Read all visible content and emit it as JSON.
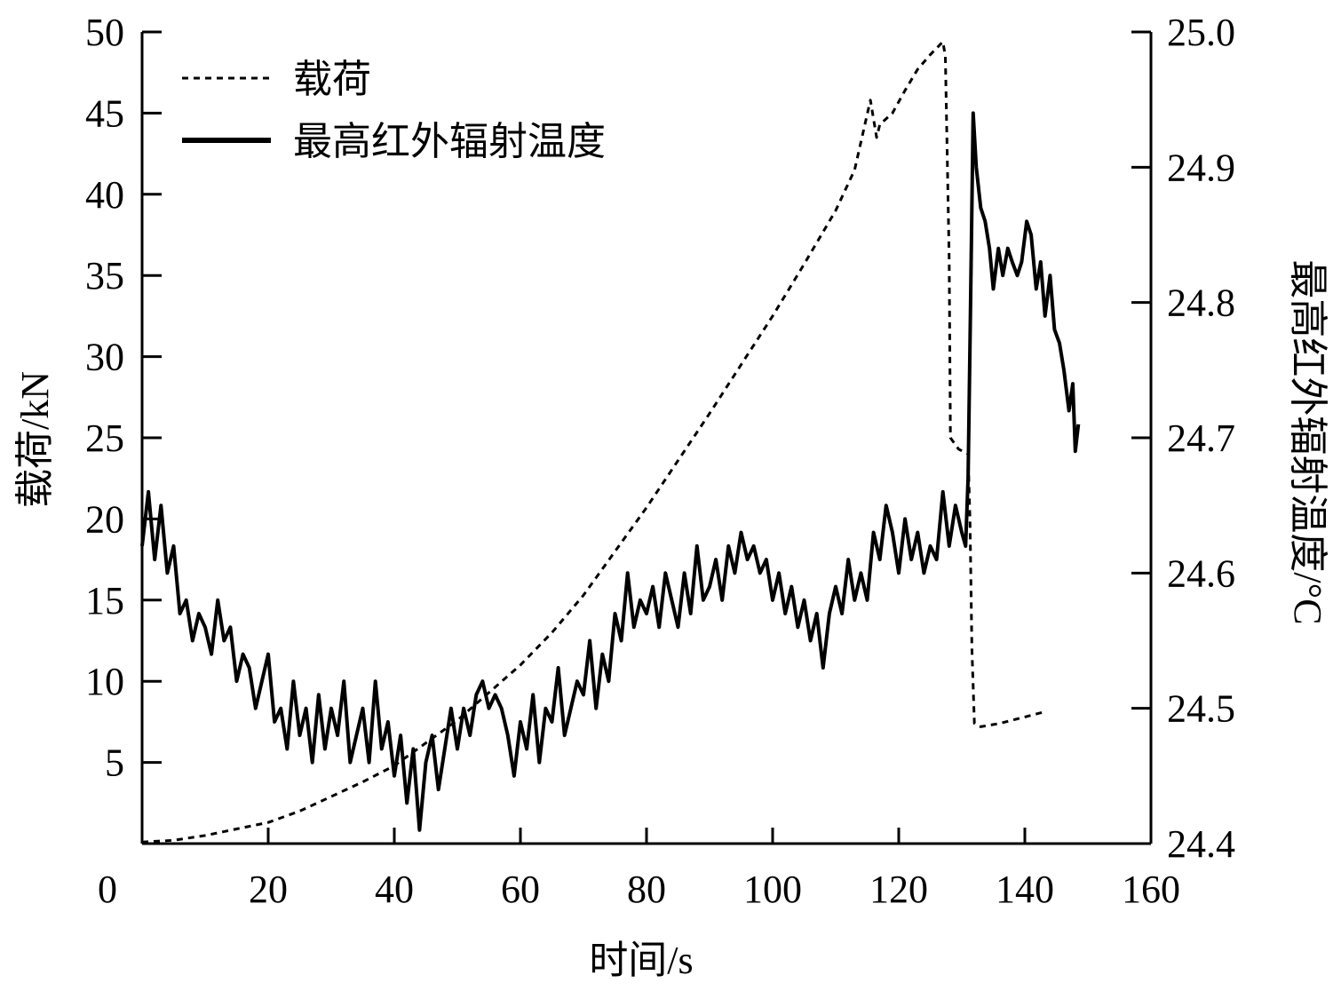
{
  "chart_data": {
    "type": "line",
    "title": "",
    "xlabel": "时间/s",
    "ylabel_left": "载荷/kN",
    "ylabel_right": "最高红外辐射温度/°C",
    "xlim": [
      0,
      160
    ],
    "ylim_left": [
      0,
      50
    ],
    "ylim_right": [
      24.4,
      25.0
    ],
    "x_ticks": [
      0,
      20,
      40,
      60,
      80,
      100,
      120,
      140,
      160
    ],
    "x_tick_labels": [
      "0",
      "20",
      "40",
      "60",
      "80",
      "100",
      "120",
      "140",
      "160"
    ],
    "y_left_ticks": [
      5,
      10,
      15,
      20,
      25,
      30,
      35,
      40,
      45,
      50
    ],
    "y_left_tick_labels": [
      "5",
      "10",
      "15",
      "20",
      "25",
      "30",
      "35",
      "40",
      "45",
      "50"
    ],
    "y_right_ticks": [
      24.4,
      24.5,
      24.6,
      24.7,
      24.8,
      24.9,
      25.0
    ],
    "y_right_tick_labels": [
      "24.4",
      "24.5",
      "24.6",
      "24.7",
      "24.8",
      "24.9",
      "25.0"
    ],
    "grid": false,
    "legend_position": "top-left",
    "series": [
      {
        "name": "载荷",
        "axis": "left",
        "style": "dashed",
        "color": "#000000",
        "points": [
          [
            0,
            0.1
          ],
          [
            5,
            0.2
          ],
          [
            10,
            0.5
          ],
          [
            15,
            0.9
          ],
          [
            20,
            1.3
          ],
          [
            25,
            2.0
          ],
          [
            30,
            2.9
          ],
          [
            35,
            3.8
          ],
          [
            40,
            4.8
          ],
          [
            45,
            6.2
          ],
          [
            50,
            7.6
          ],
          [
            55,
            9.3
          ],
          [
            60,
            11.0
          ],
          [
            65,
            13.0
          ],
          [
            70,
            15.3
          ],
          [
            75,
            18.0
          ],
          [
            80,
            20.7
          ],
          [
            85,
            23.6
          ],
          [
            90,
            26.5
          ],
          [
            95,
            29.5
          ],
          [
            100,
            32.5
          ],
          [
            105,
            35.7
          ],
          [
            110,
            39.0
          ],
          [
            113,
            41.5
          ],
          [
            115.5,
            45.8
          ],
          [
            116.5,
            43.5
          ],
          [
            117,
            44.3
          ],
          [
            119,
            45.0
          ],
          [
            121,
            46.4
          ],
          [
            123,
            47.7
          ],
          [
            125,
            48.6
          ],
          [
            127,
            49.4
          ],
          [
            127.4,
            48.5
          ],
          [
            128,
            36.0
          ],
          [
            128.2,
            25.0
          ],
          [
            129.5,
            24.3
          ],
          [
            131,
            24.0
          ],
          [
            131.3,
            20.0
          ],
          [
            131.6,
            12.0
          ],
          [
            132,
            7.4
          ],
          [
            133,
            7.2
          ],
          [
            136,
            7.4
          ],
          [
            140,
            7.8
          ],
          [
            143,
            8.1
          ]
        ]
      },
      {
        "name": "最高红外辐射温度",
        "axis": "right",
        "style": "solid",
        "color": "#000000",
        "points": [
          [
            0,
            24.62
          ],
          [
            1,
            24.66
          ],
          [
            2,
            24.61
          ],
          [
            3,
            24.65
          ],
          [
            4,
            24.6
          ],
          [
            5,
            24.62
          ],
          [
            6,
            24.57
          ],
          [
            7,
            24.58
          ],
          [
            8,
            24.55
          ],
          [
            9,
            24.57
          ],
          [
            10,
            24.56
          ],
          [
            11,
            24.54
          ],
          [
            12,
            24.58
          ],
          [
            13,
            24.55
          ],
          [
            14,
            24.56
          ],
          [
            15,
            24.52
          ],
          [
            16,
            24.54
          ],
          [
            17,
            24.53
          ],
          [
            18,
            24.5
          ],
          [
            19,
            24.52
          ],
          [
            20,
            24.54
          ],
          [
            21,
            24.49
          ],
          [
            22,
            24.5
          ],
          [
            23,
            24.47
          ],
          [
            24,
            24.52
          ],
          [
            25,
            24.48
          ],
          [
            26,
            24.5
          ],
          [
            27,
            24.46
          ],
          [
            28,
            24.51
          ],
          [
            29,
            24.47
          ],
          [
            30,
            24.5
          ],
          [
            31,
            24.48
          ],
          [
            32,
            24.52
          ],
          [
            33,
            24.46
          ],
          [
            34,
            24.48
          ],
          [
            35,
            24.5
          ],
          [
            36,
            24.46
          ],
          [
            37,
            24.52
          ],
          [
            38,
            24.47
          ],
          [
            39,
            24.49
          ],
          [
            40,
            24.45
          ],
          [
            41,
            24.48
          ],
          [
            42,
            24.43
          ],
          [
            43,
            24.47
          ],
          [
            44,
            24.41
          ],
          [
            45,
            24.46
          ],
          [
            46,
            24.48
          ],
          [
            47,
            24.44
          ],
          [
            48,
            24.47
          ],
          [
            49,
            24.5
          ],
          [
            50,
            24.47
          ],
          [
            51,
            24.5
          ],
          [
            52,
            24.48
          ],
          [
            53,
            24.51
          ],
          [
            54,
            24.52
          ],
          [
            55,
            24.5
          ],
          [
            56,
            24.51
          ],
          [
            57,
            24.5
          ],
          [
            58,
            24.48
          ],
          [
            59,
            24.45
          ],
          [
            60,
            24.49
          ],
          [
            61,
            24.47
          ],
          [
            62,
            24.51
          ],
          [
            63,
            24.46
          ],
          [
            64,
            24.5
          ],
          [
            65,
            24.49
          ],
          [
            66,
            24.53
          ],
          [
            67,
            24.48
          ],
          [
            68,
            24.5
          ],
          [
            69,
            24.52
          ],
          [
            70,
            24.51
          ],
          [
            71,
            24.55
          ],
          [
            72,
            24.5
          ],
          [
            73,
            24.54
          ],
          [
            74,
            24.52
          ],
          [
            75,
            24.57
          ],
          [
            76,
            24.55
          ],
          [
            77,
            24.6
          ],
          [
            78,
            24.56
          ],
          [
            79,
            24.58
          ],
          [
            80,
            24.57
          ],
          [
            81,
            24.59
          ],
          [
            82,
            24.56
          ],
          [
            83,
            24.6
          ],
          [
            84,
            24.58
          ],
          [
            85,
            24.56
          ],
          [
            86,
            24.6
          ],
          [
            87,
            24.57
          ],
          [
            88,
            24.62
          ],
          [
            89,
            24.58
          ],
          [
            90,
            24.59
          ],
          [
            91,
            24.61
          ],
          [
            92,
            24.58
          ],
          [
            93,
            24.62
          ],
          [
            94,
            24.6
          ],
          [
            95,
            24.63
          ],
          [
            96,
            24.61
          ],
          [
            97,
            24.62
          ],
          [
            98,
            24.6
          ],
          [
            99,
            24.61
          ],
          [
            100,
            24.58
          ],
          [
            101,
            24.6
          ],
          [
            102,
            24.57
          ],
          [
            103,
            24.59
          ],
          [
            104,
            24.56
          ],
          [
            105,
            24.58
          ],
          [
            106,
            24.55
          ],
          [
            107,
            24.57
          ],
          [
            108,
            24.53
          ],
          [
            109,
            24.57
          ],
          [
            110,
            24.59
          ],
          [
            111,
            24.57
          ],
          [
            112,
            24.61
          ],
          [
            113,
            24.58
          ],
          [
            114,
            24.6
          ],
          [
            115,
            24.58
          ],
          [
            116,
            24.63
          ],
          [
            117,
            24.61
          ],
          [
            118,
            24.65
          ],
          [
            119,
            24.63
          ],
          [
            120,
            24.6
          ],
          [
            121,
            24.64
          ],
          [
            122,
            24.61
          ],
          [
            123,
            24.63
          ],
          [
            124,
            24.6
          ],
          [
            125,
            24.62
          ],
          [
            126,
            24.61
          ],
          [
            127,
            24.66
          ],
          [
            128,
            24.62
          ],
          [
            129,
            24.65
          ],
          [
            130,
            24.63
          ],
          [
            130.6,
            24.62
          ],
          [
            131,
            24.67
          ],
          [
            131.4,
            24.8
          ],
          [
            131.8,
            24.94
          ],
          [
            132.3,
            24.9
          ],
          [
            133,
            24.87
          ],
          [
            133.7,
            24.86
          ],
          [
            134.4,
            24.84
          ],
          [
            135,
            24.81
          ],
          [
            135.8,
            24.84
          ],
          [
            136.5,
            24.82
          ],
          [
            137.3,
            24.84
          ],
          [
            138,
            24.83
          ],
          [
            138.8,
            24.82
          ],
          [
            139.5,
            24.83
          ],
          [
            140.3,
            24.86
          ],
          [
            141,
            24.85
          ],
          [
            141.8,
            24.81
          ],
          [
            142.5,
            24.83
          ],
          [
            143.2,
            24.79
          ],
          [
            144,
            24.82
          ],
          [
            144.7,
            24.78
          ],
          [
            145.5,
            24.77
          ],
          [
            146.2,
            24.75
          ],
          [
            147,
            24.72
          ],
          [
            147.6,
            24.74
          ],
          [
            148,
            24.69
          ],
          [
            148.5,
            24.71
          ]
        ]
      }
    ]
  }
}
